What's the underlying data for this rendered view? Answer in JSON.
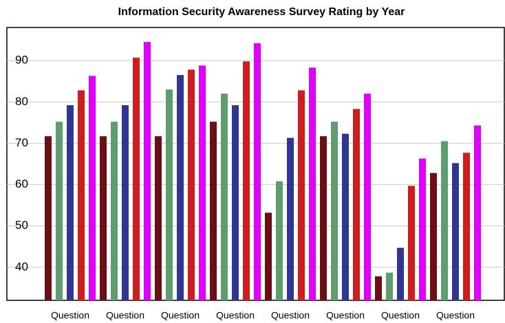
{
  "chart_data": {
    "type": "bar",
    "title": "Information Security Awareness Survey Rating by Year",
    "categories": [
      "Question",
      "Question",
      "Question",
      "Question",
      "Question",
      "Question",
      "Question",
      "Question"
    ],
    "series": [
      {
        "color": "#6b0f14",
        "values": [
          71.7,
          71.7,
          71.7,
          75.2,
          53.2,
          71.7,
          37.8,
          62.8
        ]
      },
      {
        "color": "#5e9e6e",
        "values": [
          75.2,
          75.2,
          83,
          82,
          60.8,
          75.2,
          38.7,
          70.5
        ]
      },
      {
        "color": "#2e3593",
        "values": [
          79.2,
          79.2,
          86.5,
          79.2,
          71.3,
          72.3,
          44.7,
          65.2
        ]
      },
      {
        "color": "#d01c1c",
        "values": [
          82.8,
          90.7,
          87.8,
          89.8,
          82.8,
          78.3,
          59.7,
          67.7
        ]
      },
      {
        "color": "#e100ff",
        "values": [
          86.3,
          94.5,
          88.8,
          94.2,
          88.3,
          82,
          66.3,
          74.3
        ]
      }
    ],
    "ylim": [
      32,
      98
    ],
    "yticks": [
      40,
      50,
      60,
      70,
      80,
      90
    ],
    "grid": true
  }
}
